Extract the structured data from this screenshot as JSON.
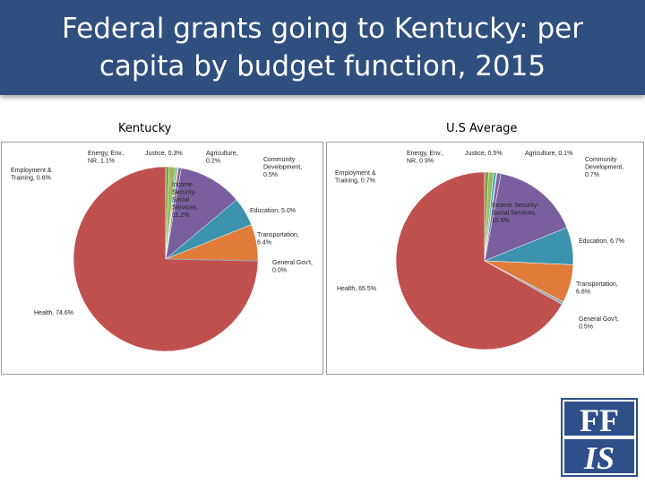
{
  "slide": {
    "title": "Federal grants going to Kentucky: per capita by budget function, 2015"
  },
  "logo": {
    "top_text": "FF",
    "bottom_text": "IS",
    "colors": {
      "blue": "#2f4f8a",
      "white": "#ffffff"
    }
  },
  "colors": {
    "Health": "#c0504d",
    "Energy, Env., NR": "#9bbb59",
    "Justice": "#4bacc6",
    "Agriculture": "#f79646",
    "Community Development": "#8064a2",
    "Income Security-Social Services": "#7a5f9e",
    "Education": "#3b93ad",
    "Transportation": "#e07b39",
    "General Gov't": "#9aa6b8",
    "Employment & Training": "#7f9f48"
  },
  "chart_data": [
    {
      "type": "pie",
      "title": "Kentucky",
      "unit": "%",
      "slices": [
        {
          "name": "Health",
          "label": [
            "Health, 74.6%"
          ],
          "value": 74.6
        },
        {
          "name": "Employment & Training",
          "label": [
            "Employment &",
            "Training, 0.6%"
          ],
          "value": 0.6
        },
        {
          "name": "Energy, Env., NR",
          "label": [
            "Energy, Env.,",
            "NR, 1.1%"
          ],
          "value": 1.1
        },
        {
          "name": "Justice",
          "label": [
            "Justice, 0.3%"
          ],
          "value": 0.3
        },
        {
          "name": "Agriculture",
          "label": [
            "Agriculture,",
            "0.2%"
          ],
          "value": 0.2
        },
        {
          "name": "Community Development",
          "label": [
            "Community",
            "Development,",
            "0.5%"
          ],
          "value": 0.5
        },
        {
          "name": "Income Security-Social Services",
          "label": [
            "Income",
            "Security-",
            "Social",
            "Services,",
            "11.2%"
          ],
          "value": 11.2
        },
        {
          "name": "Education",
          "label": [
            "Education, 5.0%"
          ],
          "value": 5.0
        },
        {
          "name": "Transportation",
          "label": [
            "Transportation,",
            "6.4%"
          ],
          "value": 6.4
        },
        {
          "name": "General Gov't",
          "label": [
            "General Gov't,",
            "0.0%"
          ],
          "value": 0.0
        }
      ]
    },
    {
      "type": "pie",
      "title": "U.S Average",
      "unit": "%",
      "slices": [
        {
          "name": "Health",
          "label": [
            "Health, 65.5%"
          ],
          "value": 65.5
        },
        {
          "name": "Employment & Training",
          "label": [
            "Employment &",
            "Training, 0.7%"
          ],
          "value": 0.7
        },
        {
          "name": "Energy, Env., NR",
          "label": [
            "Energy, Env.,",
            "NR, 0.9%"
          ],
          "value": 0.9
        },
        {
          "name": "Justice",
          "label": [
            "Justice, 0.5%"
          ],
          "value": 0.5
        },
        {
          "name": "Agriculture",
          "label": [
            "Agriculture, 0.1%"
          ],
          "value": 0.1
        },
        {
          "name": "Community Development",
          "label": [
            "Community",
            "Development,",
            "0.7%"
          ],
          "value": 0.7
        },
        {
          "name": "Income Security-Social Services",
          "label": [
            "Income Security-",
            "Social Services,",
            "15.6%"
          ],
          "value": 15.6
        },
        {
          "name": "Education",
          "label": [
            "Education, 6.7%"
          ],
          "value": 6.7
        },
        {
          "name": "Transportation",
          "label": [
            "Transportation,",
            "6.8%"
          ],
          "value": 6.8
        },
        {
          "name": "General Gov't",
          "label": [
            "General Gov't,",
            "0.5%"
          ],
          "value": 0.5
        }
      ]
    }
  ]
}
